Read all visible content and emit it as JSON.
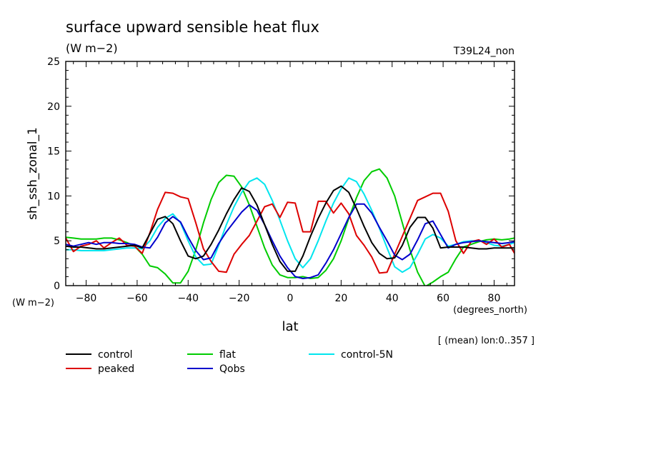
{
  "chart_data": {
    "type": "line",
    "title": "surface upward sensible heat flux",
    "units": "(W m−2)",
    "run_label": "T39L24_non",
    "xlabel": "lat",
    "xunits": "(degrees_north)",
    "ylabel": "sh_ssh_zonal_1",
    "yunits": "(W m−2)",
    "footnote": "[ (mean) lon:0..357 ]",
    "xlim": [
      -88,
      88
    ],
    "ylim": [
      0,
      25
    ],
    "xticks": [
      -80,
      -60,
      -40,
      -20,
      0,
      20,
      40,
      60,
      80
    ],
    "yticks": [
      0,
      5,
      10,
      15,
      20,
      25
    ],
    "grid": false,
    "legend_position": "below",
    "x": [
      -88,
      -85,
      -82,
      -79,
      -76,
      -73,
      -70,
      -67,
      -64,
      -61,
      -58,
      -55,
      -52,
      -49,
      -46,
      -43,
      -40,
      -37,
      -34,
      -31,
      -28,
      -25,
      -22,
      -19,
      -16,
      -13,
      -10,
      -7,
      -4,
      -1,
      2,
      5,
      8,
      11,
      14,
      17,
      20,
      23,
      26,
      29,
      32,
      35,
      38,
      41,
      44,
      47,
      50,
      53,
      56,
      59,
      62,
      65,
      68,
      71,
      74,
      77,
      80,
      83,
      86,
      88
    ],
    "series": [
      {
        "name": "control",
        "color": "#000000",
        "values": [
          4.4,
          4.3,
          4.3,
          4.2,
          4.1,
          4.1,
          4.2,
          4.3,
          4.4,
          4.5,
          4.2,
          5.8,
          7.4,
          7.7,
          6.9,
          5.0,
          3.3,
          3.0,
          3.3,
          4.6,
          6.2,
          8.0,
          9.6,
          10.9,
          10.5,
          9.0,
          6.8,
          4.6,
          2.7,
          1.6,
          1.6,
          3.3,
          5.5,
          7.5,
          9.2,
          10.6,
          11.1,
          10.4,
          8.6,
          6.6,
          4.8,
          3.6,
          3.0,
          3.1,
          4.5,
          6.5,
          7.6,
          7.6,
          6.4,
          4.2,
          4.3,
          4.3,
          4.3,
          4.2,
          4.1,
          4.1,
          4.2,
          4.2,
          4.2,
          4.2
        ]
      },
      {
        "name": "flat",
        "color": "#00cc00",
        "values": [
          5.4,
          5.3,
          5.2,
          5.2,
          5.2,
          5.3,
          5.3,
          5.1,
          4.8,
          4.4,
          3.5,
          2.2,
          2.0,
          1.3,
          0.3,
          0.3,
          1.6,
          4.0,
          7.0,
          9.6,
          11.5,
          12.3,
          12.2,
          11.0,
          9.0,
          6.6,
          4.2,
          2.3,
          1.2,
          0.9,
          0.9,
          1.0,
          0.8,
          0.9,
          1.7,
          3.0,
          5.0,
          7.5,
          9.8,
          11.7,
          12.7,
          13.0,
          12.0,
          10.0,
          7.0,
          4.0,
          1.5,
          -0.1,
          0.4,
          1.0,
          1.5,
          3.0,
          4.3,
          4.6,
          4.9,
          5.1,
          5.2,
          5.1,
          5.2,
          5.3
        ]
      },
      {
        "name": "control-5N",
        "color": "#00e5ee",
        "values": [
          4.0,
          4.0,
          3.9,
          3.9,
          3.9,
          3.9,
          4.0,
          4.1,
          4.2,
          4.2,
          4.1,
          5.0,
          6.5,
          7.5,
          8.0,
          7.0,
          5.0,
          3.2,
          2.3,
          2.4,
          4.5,
          6.8,
          8.8,
          10.4,
          11.6,
          12.0,
          11.3,
          9.5,
          7.3,
          5.0,
          3.0,
          2.0,
          3.0,
          5.0,
          7.2,
          9.2,
          10.8,
          12.0,
          11.6,
          10.2,
          8.4,
          6.4,
          4.2,
          2.1,
          1.5,
          2.0,
          3.5,
          5.2,
          5.7,
          5.3,
          4.4,
          4.6,
          4.9,
          5.0,
          5.0,
          4.8,
          4.5,
          4.4,
          4.6,
          4.8
        ]
      },
      {
        "name": "peaked",
        "color": "#dd0000",
        "values": [
          5.3,
          3.8,
          4.4,
          4.6,
          5.0,
          4.2,
          4.8,
          5.3,
          4.5,
          4.4,
          3.6,
          5.9,
          8.5,
          10.4,
          10.3,
          9.9,
          9.7,
          7.0,
          4.1,
          2.7,
          1.6,
          1.5,
          3.5,
          4.6,
          5.6,
          7.2,
          8.8,
          9.1,
          7.6,
          9.3,
          9.2,
          6.0,
          6.0,
          9.4,
          9.4,
          8.1,
          9.2,
          8.0,
          5.6,
          4.5,
          3.2,
          1.4,
          1.5,
          3.5,
          5.5,
          7.5,
          9.5,
          9.9,
          10.3,
          10.3,
          8.3,
          5.0,
          3.6,
          4.9,
          5.1,
          4.6,
          5.2,
          4.3,
          4.6,
          3.6
        ]
      },
      {
        "name": "Qobs",
        "color": "#0000cc",
        "values": [
          4.6,
          4.4,
          4.6,
          4.8,
          4.6,
          4.8,
          4.8,
          4.7,
          4.7,
          4.6,
          4.3,
          4.2,
          5.4,
          7.0,
          7.7,
          7.1,
          5.4,
          3.9,
          2.9,
          3.1,
          4.7,
          6.0,
          7.1,
          8.2,
          9.0,
          8.4,
          6.8,
          5.0,
          3.3,
          2.0,
          1.0,
          0.8,
          0.9,
          1.2,
          2.5,
          4.0,
          5.8,
          7.6,
          9.1,
          9.1,
          8.1,
          6.5,
          5.0,
          3.4,
          2.9,
          3.5,
          5.1,
          6.9,
          7.2,
          5.7,
          4.2,
          4.6,
          4.8,
          4.9,
          5.0,
          4.9,
          4.8,
          4.7,
          4.8,
          4.9
        ]
      }
    ]
  }
}
